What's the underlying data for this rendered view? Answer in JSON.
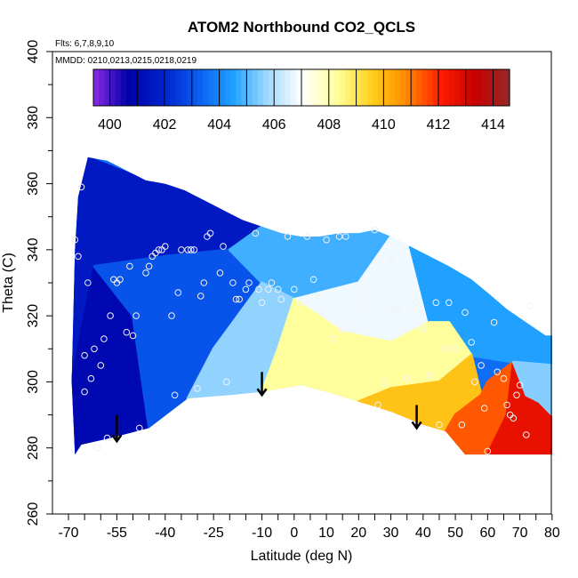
{
  "chart_data": {
    "type": "heatmap",
    "title": "ATOM2 Northbound CO2_QCLS",
    "subtitle_lines": [
      "Flts: 6,7,8,9,10",
      "MMDD: 0210,0213,0215,0218,0219"
    ],
    "xlabel": "Latitude (deg N)",
    "ylabel": "Theta (C)",
    "xlim": [
      -70,
      82
    ],
    "ylim": [
      260,
      400
    ],
    "x_tick_labels": [
      "-70",
      "-55",
      "-40",
      "-25",
      "-10",
      "0",
      "10",
      "20",
      "30",
      "40",
      "50",
      "60",
      "70",
      "80"
    ],
    "x_tick_values": [
      -70,
      -55,
      -40,
      -25,
      -10,
      0,
      10,
      20,
      30,
      40,
      50,
      60,
      70,
      80
    ],
    "x_minor_ticks": [
      -65,
      -60,
      -50,
      -45,
      -35,
      -30,
      -20,
      -15,
      -5,
      5,
      15,
      25,
      35,
      45,
      55,
      65,
      75
    ],
    "y_ticks": [
      260,
      280,
      300,
      320,
      340,
      360,
      380,
      400
    ],
    "colorbar": {
      "labels": [
        "400",
        "402",
        "404",
        "406",
        "408",
        "410",
        "412",
        "414"
      ],
      "values": [
        400,
        402,
        404,
        406,
        408,
        410,
        412,
        414
      ],
      "range": [
        399.4,
        414.6
      ],
      "colors": [
        "#8a2be2",
        "#0000a8",
        "#0022cc",
        "#0a5cf0",
        "#1ea0ff",
        "#9ed8ff",
        "#ffffff",
        "#ffffa0",
        "#ffd21e",
        "#ff8c00",
        "#ff1e00",
        "#c80000",
        "#962828"
      ]
    },
    "field_boundary": {
      "top": [
        [
          -64,
          368
        ],
        [
          -58,
          367
        ],
        [
          -52,
          364
        ],
        [
          -46,
          361
        ],
        [
          -40,
          360
        ],
        [
          -34,
          358
        ],
        [
          -28,
          355
        ],
        [
          -22,
          352
        ],
        [
          -16,
          349
        ],
        [
          -10,
          347
        ],
        [
          -4,
          345
        ],
        [
          2,
          344
        ],
        [
          8,
          344
        ],
        [
          14,
          345
        ],
        [
          20,
          345
        ],
        [
          25,
          346
        ],
        [
          30,
          344
        ],
        [
          36,
          341
        ],
        [
          42,
          338
        ],
        [
          48,
          335
        ],
        [
          55,
          331
        ],
        [
          60,
          327
        ],
        [
          66,
          322
        ],
        [
          72,
          318
        ],
        [
          78,
          314
        ],
        [
          80,
          314
        ],
        [
          80,
          278
        ]
      ],
      "bottom": [
        [
          80,
          278
        ],
        [
          76,
          278
        ],
        [
          68,
          278
        ],
        [
          60,
          278
        ],
        [
          53,
          278
        ],
        [
          47,
          285
        ],
        [
          40,
          287
        ],
        [
          30,
          291
        ],
        [
          20,
          294
        ],
        [
          10,
          297
        ],
        [
          2,
          299
        ],
        [
          -10,
          297
        ],
        [
          -20,
          296
        ],
        [
          -33,
          295
        ],
        [
          -45,
          286
        ],
        [
          -57,
          283
        ],
        [
          -66,
          281
        ],
        [
          -68,
          278
        ],
        [
          -69,
          300
        ],
        [
          -68,
          340
        ],
        [
          -67,
          356
        ],
        [
          -64,
          368
        ]
      ]
    },
    "field_regions": [
      {
        "value": 401.6,
        "polygon": [
          [
            -64,
            368
          ],
          [
            -46,
            361
          ],
          [
            -30,
            357
          ],
          [
            -10,
            347
          ],
          [
            -20,
            340
          ],
          [
            -40,
            338
          ],
          [
            -62,
            335
          ],
          [
            -69,
            300
          ],
          [
            -68,
            340
          ],
          [
            -67,
            356
          ]
        ]
      },
      {
        "value": 401.0,
        "polygon": [
          [
            -69,
            300
          ],
          [
            -62,
            335
          ],
          [
            -50,
            320
          ],
          [
            -45,
            286
          ],
          [
            -57,
            283
          ],
          [
            -66,
            281
          ],
          [
            -68,
            278
          ]
        ]
      },
      {
        "value": 403.0,
        "polygon": [
          [
            -50,
            320
          ],
          [
            -62,
            335
          ],
          [
            -40,
            338
          ],
          [
            -20,
            340
          ],
          [
            -10,
            330
          ],
          [
            -25,
            310
          ],
          [
            -33,
            295
          ],
          [
            -45,
            286
          ]
        ]
      },
      {
        "value": 404.8,
        "polygon": [
          [
            -10,
            347
          ],
          [
            10,
            344
          ],
          [
            25,
            346
          ],
          [
            30,
            344
          ],
          [
            20,
            330
          ],
          [
            0,
            325
          ],
          [
            -10,
            330
          ],
          [
            -20,
            340
          ]
        ]
      },
      {
        "value": 405.6,
        "polygon": [
          [
            -25,
            310
          ],
          [
            -10,
            330
          ],
          [
            0,
            325
          ],
          [
            -5,
            310
          ],
          [
            -10,
            297
          ],
          [
            -20,
            296
          ],
          [
            -33,
            295
          ]
        ]
      },
      {
        "value": 406.8,
        "polygon": [
          [
            0,
            325
          ],
          [
            20,
            330
          ],
          [
            30,
            344
          ],
          [
            36,
            341
          ],
          [
            48,
            335
          ],
          [
            42,
            318
          ],
          [
            30,
            312
          ],
          [
            15,
            315
          ]
        ]
      },
      {
        "value": 404.5,
        "polygon": [
          [
            36,
            341
          ],
          [
            42,
            338
          ],
          [
            48,
            335
          ],
          [
            55,
            331
          ],
          [
            60,
            327
          ],
          [
            66,
            322
          ],
          [
            72,
            318
          ],
          [
            78,
            314
          ],
          [
            80,
            314
          ],
          [
            80,
            305
          ],
          [
            68,
            306
          ],
          [
            55,
            308
          ],
          [
            48,
            318
          ],
          [
            42,
            318
          ]
        ]
      },
      {
        "value": 408.3,
        "polygon": [
          [
            -5,
            310
          ],
          [
            0,
            325
          ],
          [
            15,
            315
          ],
          [
            30,
            312
          ],
          [
            42,
            318
          ],
          [
            48,
            318
          ],
          [
            55,
            308
          ],
          [
            45,
            300
          ],
          [
            30,
            298
          ],
          [
            20,
            294
          ],
          [
            10,
            297
          ],
          [
            2,
            299
          ],
          [
            -10,
            297
          ]
        ]
      },
      {
        "value": 409.8,
        "polygon": [
          [
            20,
            294
          ],
          [
            30,
            298
          ],
          [
            45,
            300
          ],
          [
            55,
            308
          ],
          [
            58,
            296
          ],
          [
            50,
            290
          ],
          [
            47,
            285
          ],
          [
            40,
            287
          ],
          [
            30,
            291
          ]
        ]
      },
      {
        "value": 411.4,
        "polygon": [
          [
            47,
            285
          ],
          [
            50,
            290
          ],
          [
            58,
            296
          ],
          [
            60,
            300
          ],
          [
            68,
            306
          ],
          [
            66,
            290
          ],
          [
            60,
            278
          ],
          [
            53,
            278
          ]
        ]
      },
      {
        "value": 412.6,
        "polygon": [
          [
            60,
            278
          ],
          [
            66,
            290
          ],
          [
            68,
            306
          ],
          [
            72,
            296
          ],
          [
            76,
            294
          ],
          [
            80,
            290
          ],
          [
            80,
            278
          ],
          [
            76,
            278
          ],
          [
            68,
            278
          ]
        ]
      },
      {
        "value": 405.5,
        "polygon": [
          [
            68,
            306
          ],
          [
            80,
            305
          ],
          [
            80,
            290
          ],
          [
            76,
            294
          ],
          [
            72,
            296
          ]
        ]
      }
    ],
    "arrows": [
      {
        "x": -55,
        "y_top": 290,
        "y_bottom": 282
      },
      {
        "x": -10,
        "y_top": 303,
        "y_bottom": 296
      },
      {
        "x": 38,
        "y_top": 293,
        "y_bottom": 286
      }
    ],
    "sample_points": [
      [
        -68,
        343
      ],
      [
        -67,
        338
      ],
      [
        -66,
        359
      ],
      [
        -65,
        297
      ],
      [
        -65,
        308
      ],
      [
        -64,
        330
      ],
      [
        -63,
        301
      ],
      [
        -62,
        310
      ],
      [
        -61,
        280
      ],
      [
        -60,
        305
      ],
      [
        -59,
        313
      ],
      [
        -58,
        283
      ],
      [
        -57,
        320
      ],
      [
        -56,
        331
      ],
      [
        -55,
        330
      ],
      [
        -54,
        331
      ],
      [
        -52,
        315
      ],
      [
        -51,
        335
      ],
      [
        -50,
        314
      ],
      [
        -49,
        320
      ],
      [
        -48,
        286
      ],
      [
        -46,
        333
      ],
      [
        -45,
        335
      ],
      [
        -44,
        338
      ],
      [
        -43,
        339
      ],
      [
        -42,
        340
      ],
      [
        -41,
        340
      ],
      [
        -40,
        341
      ],
      [
        -38,
        320
      ],
      [
        -37,
        296
      ],
      [
        -36,
        327
      ],
      [
        -35,
        340
      ],
      [
        -33,
        340
      ],
      [
        -32,
        340
      ],
      [
        -31,
        340
      ],
      [
        -30,
        298
      ],
      [
        -29,
        326
      ],
      [
        -28,
        330
      ],
      [
        -27,
        344
      ],
      [
        -26,
        345
      ],
      [
        -23,
        333
      ],
      [
        -22,
        341
      ],
      [
        -21,
        300
      ],
      [
        -19,
        330
      ],
      [
        -18,
        325
      ],
      [
        -17,
        325
      ],
      [
        -15,
        328
      ],
      [
        -14,
        330
      ],
      [
        -12,
        345
      ],
      [
        -11,
        328
      ],
      [
        -10,
        324
      ],
      [
        -8,
        328
      ],
      [
        -7,
        330
      ],
      [
        -5,
        328
      ],
      [
        -4,
        325
      ],
      [
        -2,
        344
      ],
      [
        0,
        328
      ],
      [
        2,
        324
      ],
      [
        4,
        344
      ],
      [
        6,
        331
      ],
      [
        8,
        326
      ],
      [
        10,
        343
      ],
      [
        12,
        313
      ],
      [
        14,
        344
      ],
      [
        15,
        316
      ],
      [
        16,
        344
      ],
      [
        18,
        316
      ],
      [
        20,
        323
      ],
      [
        22,
        327
      ],
      [
        23,
        316
      ],
      [
        25,
        346
      ],
      [
        26,
        293
      ],
      [
        28,
        300
      ],
      [
        30,
        337
      ],
      [
        32,
        322
      ],
      [
        33,
        316
      ],
      [
        35,
        301
      ],
      [
        38,
        324
      ],
      [
        40,
        316
      ],
      [
        42,
        302
      ],
      [
        44,
        324
      ],
      [
        45,
        287
      ],
      [
        47,
        310
      ],
      [
        48,
        324
      ],
      [
        50,
        310
      ],
      [
        52,
        287
      ],
      [
        53,
        321
      ],
      [
        55,
        312
      ],
      [
        56,
        300
      ],
      [
        58,
        305
      ],
      [
        59,
        292
      ],
      [
        60,
        279
      ],
      [
        62,
        318
      ],
      [
        63,
        303
      ],
      [
        65,
        301
      ],
      [
        66,
        293
      ],
      [
        67,
        290
      ],
      [
        68,
        289
      ],
      [
        69,
        296
      ],
      [
        70,
        299
      ],
      [
        72,
        284
      ],
      [
        73,
        323
      ],
      [
        80,
        277
      ]
    ]
  }
}
